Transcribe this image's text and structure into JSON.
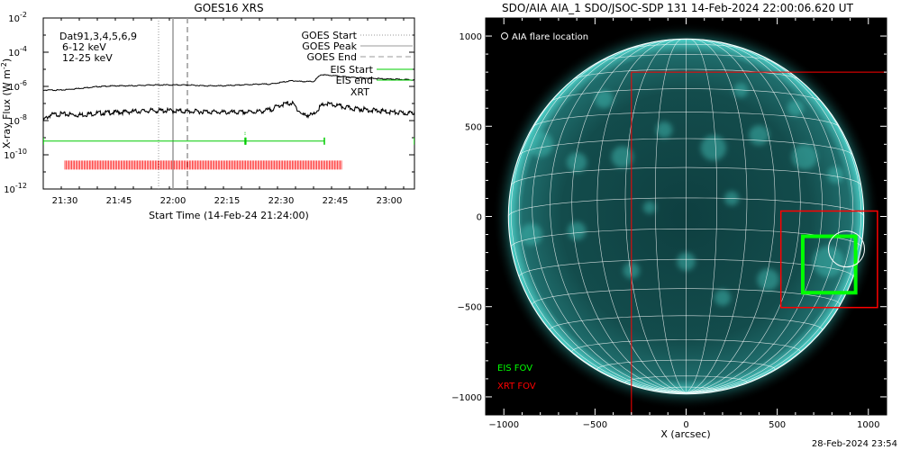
{
  "goes": {
    "title": "GOES16 XRS",
    "xlabel": "Start Time (14-Feb-24 21:24:00)",
    "ylabel": "X-ray Flux (W m",
    "ylabel_sup": "-2",
    "ylabel_close": ")",
    "dat_label": "Dat91,3,4,5,6,9",
    "band_labels": [
      {
        "text": "6-12 keV",
        "color": "#cc00cc"
      },
      {
        "text": "12-25 keV",
        "color": "#00cc00"
      }
    ],
    "legend": [
      {
        "text": "GOES Start",
        "style": "dotted",
        "color": "#999999"
      },
      {
        "text": "GOES Peak",
        "style": "solid",
        "color": "#999999"
      },
      {
        "text": "GOES End",
        "style": "dashed",
        "color": "#999999"
      },
      {
        "text": "EIS Start",
        "style": "solid",
        "color": "#00cc00"
      },
      {
        "text": "EIS end",
        "style": "solid",
        "color": "#00cc00"
      },
      {
        "text": "XRT",
        "style": "text",
        "color": "#ff0000"
      }
    ]
  },
  "aia": {
    "title": "SDO/AIA AIA_1 SDO/JSOC-SDP 131 14-Feb-2024 22:00:06.620 UT",
    "xlabel": "X (arcsec)",
    "flare_label": "AIA flare location",
    "eis_fov_label": "EIS FOV",
    "xrt_fov_label": "XRT FOV",
    "colors": {
      "eis": "#00ff00",
      "xrt": "#ff0000",
      "disk": "#0a3a3a",
      "glow": "#39c9c0"
    }
  },
  "footer": {
    "timestamp": "28-Feb-2024 23:54"
  },
  "chart_data": [
    {
      "type": "line",
      "title": "GOES16 XRS",
      "xlabel": "Start Time (14-Feb-24 21:24:00)",
      "ylabel": "X-ray Flux (W m-2)",
      "x_unit": "minutes after 21:24:00",
      "xlim": [
        0,
        103
      ],
      "x_ticks": [
        {
          "x": 6,
          "label": "21:30"
        },
        {
          "x": 21,
          "label": "21:45"
        },
        {
          "x": 36,
          "label": "22:00"
        },
        {
          "x": 51,
          "label": "22:15"
        },
        {
          "x": 66,
          "label": "22:30"
        },
        {
          "x": 81,
          "label": "22:45"
        },
        {
          "x": 96,
          "label": "23:00"
        }
      ],
      "yscale": "log",
      "ylim_exp": [
        -12,
        -2
      ],
      "y_ticks": [
        {
          "exp": -12,
          "base": "10",
          "sup": "-12"
        },
        {
          "exp": -10,
          "base": "10",
          "sup": "-10"
        },
        {
          "exp": -8,
          "base": "10",
          "sup": "-8"
        },
        {
          "exp": -6,
          "base": "10",
          "sup": "-6"
        },
        {
          "exp": -4,
          "base": "10",
          "sup": "-4"
        },
        {
          "exp": -2,
          "base": "10",
          "sup": "-2"
        }
      ],
      "series": [
        {
          "name": "6-12 keV",
          "color": "#000000",
          "x": [
            0,
            5,
            10,
            15,
            20,
            25,
            30,
            35,
            40,
            45,
            50,
            55,
            60,
            63,
            66,
            69,
            72,
            75,
            77,
            80,
            85,
            90,
            95,
            103
          ],
          "log_y": [
            -6.2,
            -6.2,
            -6.1,
            -6.0,
            -5.95,
            -5.95,
            -5.9,
            -5.9,
            -5.9,
            -5.95,
            -5.95,
            -5.9,
            -5.85,
            -5.85,
            -5.75,
            -5.65,
            -5.7,
            -5.7,
            -5.3,
            -5.35,
            -5.45,
            -5.5,
            -5.55,
            -5.6
          ]
        },
        {
          "name": "12-25 keV",
          "color": "#000000",
          "x": [
            0,
            2,
            5,
            10,
            15,
            20,
            25,
            30,
            35,
            40,
            45,
            50,
            55,
            60,
            63,
            66,
            69,
            72,
            75,
            76,
            78,
            80,
            85,
            90,
            95,
            100,
            103
          ],
          "log_y": [
            -7.9,
            -7.6,
            -7.55,
            -7.6,
            -7.5,
            -7.45,
            -7.4,
            -7.35,
            -7.35,
            -7.4,
            -7.4,
            -7.45,
            -7.45,
            -7.4,
            -7.3,
            -7.0,
            -6.9,
            -7.6,
            -7.6,
            -7.3,
            -6.95,
            -7.0,
            -7.2,
            -7.3,
            -7.4,
            -7.5,
            -7.5
          ]
        }
      ],
      "goes_events": {
        "start": 32,
        "peak": 36,
        "end": 40
      },
      "eis_raster": {
        "log_y": -9.2,
        "x_start": 0,
        "x_end": 78,
        "marks": [
          0,
          56,
          56.2,
          78,
          103
        ]
      },
      "xrt_obs": {
        "log_y": -10.6,
        "x_start": 6,
        "x_end": 83
      }
    },
    {
      "type": "image",
      "title": "SDO/AIA AIA_1 SDO/JSOC-SDP 131 14-Feb-2024 22:00:06.620 UT",
      "xlabel": "X (arcsec)",
      "ylabel": "",
      "xlim": [
        -1100,
        1100
      ],
      "ylim": [
        -1100,
        1100
      ],
      "x_ticks": [
        -1000,
        -500,
        0,
        500,
        1000
      ],
      "y_ticks": [
        -1000,
        -500,
        0,
        500,
        1000
      ],
      "solar_radius_arcsec": 975,
      "flare_location": [
        880,
        -180
      ],
      "eis_fov": {
        "x": [
          640,
          930
        ],
        "y": [
          -420,
          -110
        ]
      },
      "xrt_fov_large": {
        "x": [
          -300,
          1100
        ],
        "y": [
          -1100,
          800
        ]
      },
      "xrt_fov_small": {
        "x": [
          520,
          1050
        ],
        "y": [
          -500,
          30
        ]
      }
    }
  ]
}
